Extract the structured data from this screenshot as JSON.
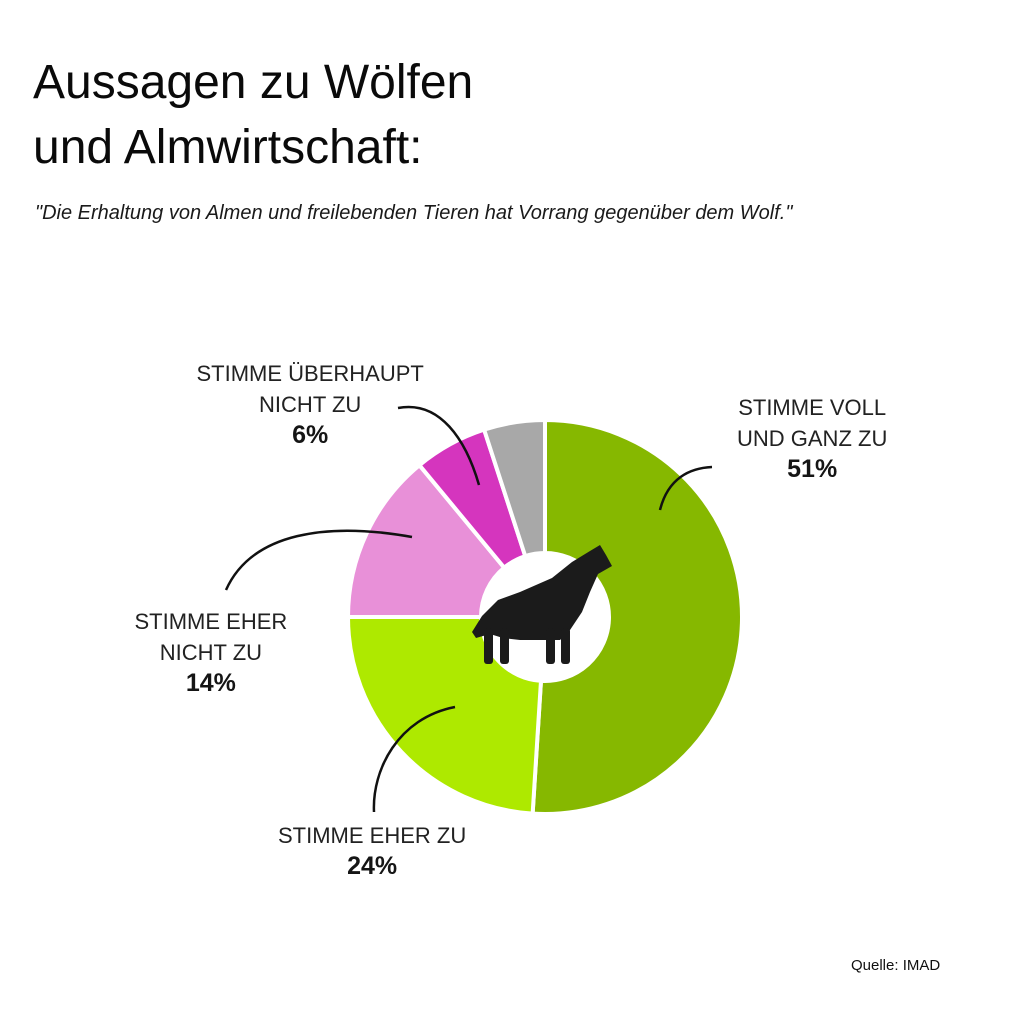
{
  "title_line1": "Aussagen zu Wölfen",
  "title_line2": "und Almwirtschaft:",
  "subtitle": "\"Die Erhaltung von Almen und freilebenden Tieren hat Vorrang gegenüber dem Wolf.\"",
  "source": "Quelle: IMAD",
  "chart_data": {
    "type": "pie",
    "variant": "donut",
    "center_icon": "howling-wolf-icon",
    "slices": [
      {
        "label_lines": [
          "STIMME VOLL",
          "UND GANZ ZU"
        ],
        "value": 51,
        "value_text": "51%",
        "color": "#86b800"
      },
      {
        "label_lines": [
          "STIMME EHER ZU"
        ],
        "value": 24,
        "value_text": "24%",
        "color": "#aee900"
      },
      {
        "label_lines": [
          "STIMME EHER",
          "NICHT ZU"
        ],
        "value": 14,
        "value_text": "14%",
        "color": "#e890d8"
      },
      {
        "label_lines": [
          "STIMME ÜBERHAUPT",
          "NICHT ZU"
        ],
        "value": 6,
        "value_text": "6%",
        "color": "#d535be"
      },
      {
        "label_lines": [],
        "value": 5,
        "value_text": "",
        "color": "#a8a8a8"
      }
    ]
  }
}
